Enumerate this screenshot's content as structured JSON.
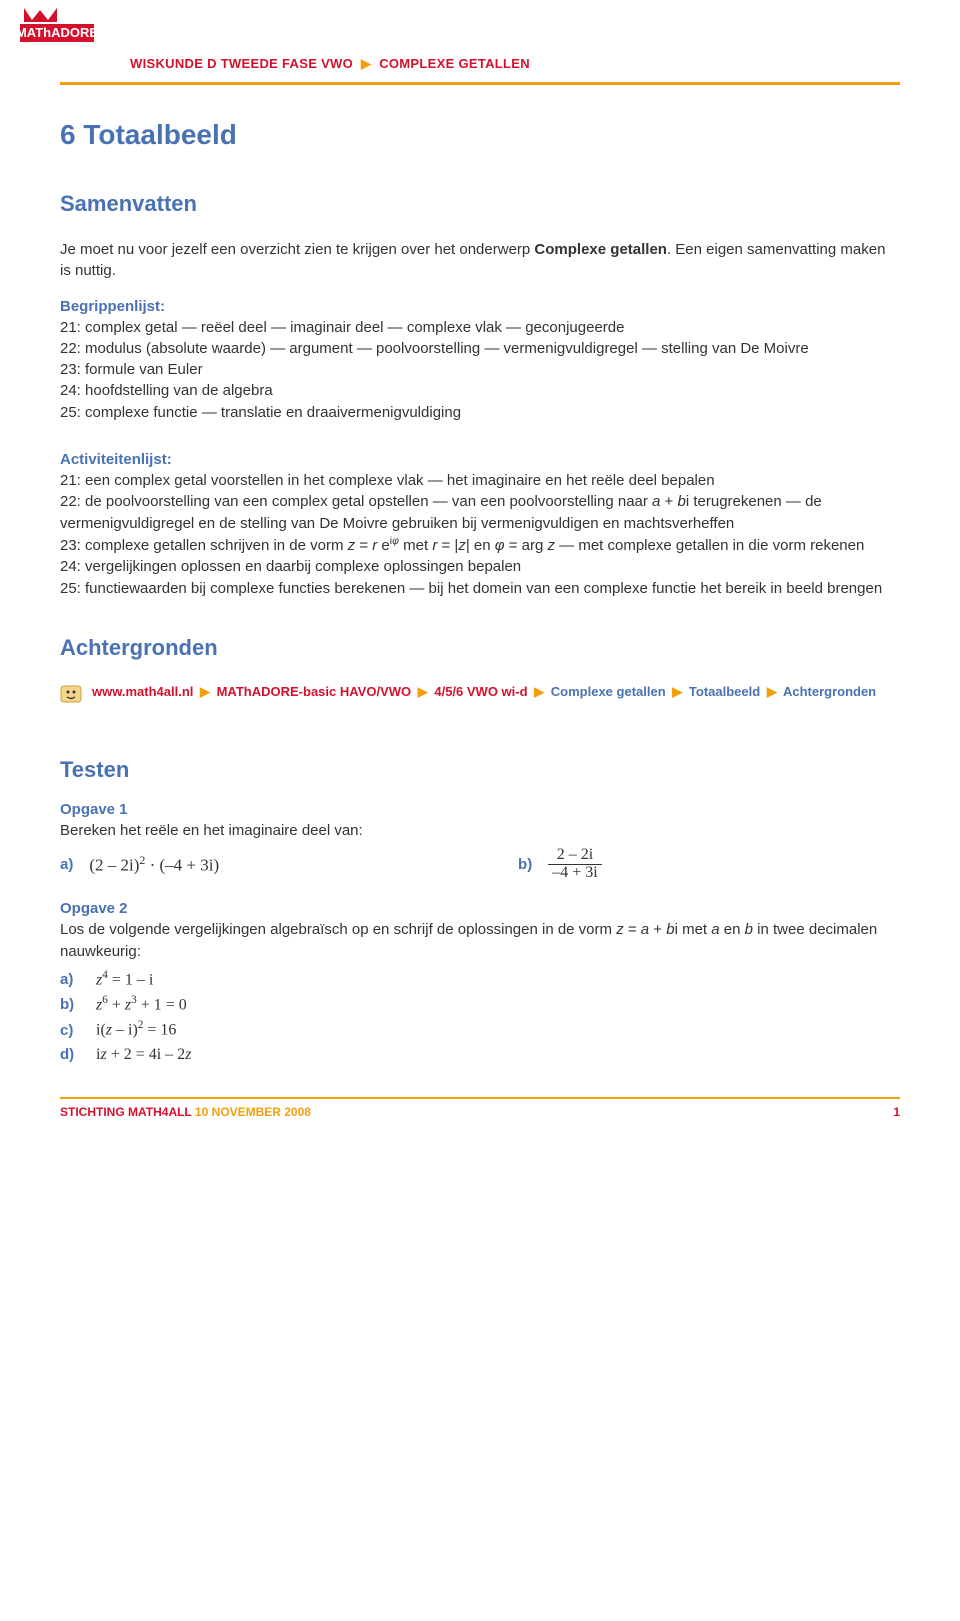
{
  "colors": {
    "accent_red": "#d4112d",
    "accent_orange": "#f59e0b",
    "heading_blue": "#4a72b2",
    "body": "#333333",
    "background": "#ffffff"
  },
  "logo": {
    "name": "MAThADORE"
  },
  "header": {
    "left": "WISKUNDE D TWEEDE FASE VWO",
    "right": "COMPLEXE GETALLEN"
  },
  "title": "6 Totaalbeeld",
  "samenvatten": {
    "heading": "Samenvatten",
    "lede_pre": "Je moet nu voor jezelf een overzicht zien te krijgen over het onderwerp ",
    "lede_strong": "Complexe getallen",
    "lede_post": ". Een eigen samenvatting maken is nuttig."
  },
  "begrippen": {
    "title": "Begrippenlijst:",
    "lines": [
      "21: complex getal — reëel deel — imaginair deel — complexe vlak — geconjugeerde",
      "22: modulus (absolute waarde) — argument — poolvoorstelling — vermenigvuldigregel — stelling van De Moivre",
      "23: formule van Euler",
      "24: hoofdstelling van de algebra",
      "25: complexe functie — translatie en draaivermenigvuldiging"
    ]
  },
  "activiteiten": {
    "title": "Activiteitenlijst:",
    "lines_html": [
      "21: een complex getal voorstellen in het complexe vlak — het imaginaire en het reële deel bepalen",
      "22: de poolvoorstelling van een complex getal opstellen — van een poolvoorstelling naar <span class='ital'>a</span> + <span class='ital'>b</span>i terugrekenen — de vermenigvuldigregel en de stelling van De Moivre gebruiken bij vermenigvuldigen en machtsverheffen",
      "23: complexe getallen schrijven in de vorm <span class='ital'>z</span> = <span class='ital'>r</span> e<sup>i<span class='ital'>φ</span></sup> met <span class='ital'>r</span> = |<span class='ital'>z</span>| en <span class='ital'>φ</span> = arg <span class='ital'>z</span> — met complexe getallen in die vorm rekenen",
      "24: vergelijkingen oplossen en daarbij complexe oplossingen bepalen",
      "25: functiewaarden bij complexe functies berekenen — bij het domein van een complexe functie het bereik in beeld brengen"
    ]
  },
  "achtergronden": {
    "heading": "Achtergronden",
    "link_parts": [
      "www.math4all.nl",
      "MAThADORE-basic HAVO/VWO",
      "4/5/6 VWO wi-d"
    ],
    "link_tail_parts": [
      "Complexe getallen",
      "Totaalbeeld",
      "Achtergronden"
    ]
  },
  "testen": {
    "heading": "Testen",
    "opgave1": {
      "title": "Opgave 1",
      "intro": "Bereken het reële en het imaginaire deel van:",
      "a_label": "a)",
      "a_html": "(2 – 2i)<sup>2</sup> · (–4 + 3i)",
      "b_label": "b)",
      "b_num": "2 – 2i",
      "b_den": "–4 + 3i"
    },
    "opgave2": {
      "title": "Opgave 2",
      "intro_html": "Los de volgende vergelijkingen algebraïsch op en schrijf de oplossingen in de vorm <span class='ital'>z</span> = <span class='ital'>a</span> + <span class='ital'>b</span>i met <span class='ital'>a</span> en <span class='ital'>b</span> in twee decimalen nauwkeurig:",
      "parts": [
        {
          "lbl": "a)",
          "html": "<span class='ital'>z</span><sup>4</sup> = 1 – i"
        },
        {
          "lbl": "b)",
          "html": "<span class='ital'>z</span><sup>6</sup> + <span class='ital'>z</span><sup>3</sup> + 1 = 0"
        },
        {
          "lbl": "c)",
          "html": "i(<span class='ital'>z</span> – i)<sup>2</sup> = 16"
        },
        {
          "lbl": "d)",
          "html": "i<span class='ital'>z</span> + 2 = 4i – 2<span class='ital'>z</span>"
        }
      ]
    }
  },
  "footer": {
    "org": "STICHTING MATH4ALL",
    "date": "10 NOVEMBER 2008",
    "page": "1"
  }
}
